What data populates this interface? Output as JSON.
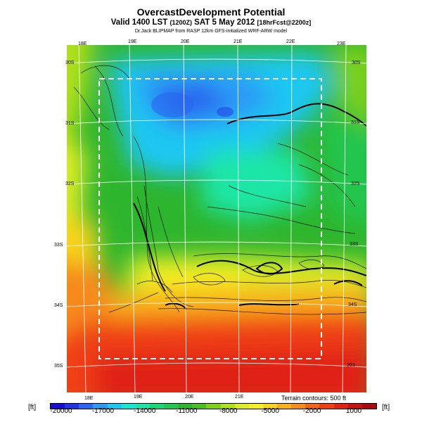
{
  "header": {
    "title": "OvercastDevelopment Potential",
    "valid_main": "Valid 1400 LST",
    "valid_z": "(1200Z)",
    "valid_date": "SAT 5 May 2012",
    "valid_fcst": "[18hrFcst@2200z]",
    "credit": "Dr.Jack BLIPMAP from RASP 12km GFS-initialized WRF-ARW model"
  },
  "map": {
    "lon_top": [
      "18E",
      "19E",
      "20E",
      "21E",
      "22E",
      "23E"
    ],
    "lon_bottom": [
      "18E",
      "19E",
      "20E",
      "21E"
    ],
    "lat_left": [
      "30S",
      "31S",
      "32S",
      "33S",
      "34S",
      "35S"
    ],
    "lat_right": [
      "30S",
      "31S",
      "32S",
      "33S",
      "34S",
      "35S"
    ],
    "terrain_note": "Terrain contours: 500 ft"
  },
  "colorbar": {
    "unit_left": "[ft]",
    "unit_right": "[ft]",
    "ticks": [
      "-20000",
      "-17000",
      "-14000",
      "-11000",
      "-8000",
      "-5000",
      "-2000",
      "1000"
    ],
    "colors": [
      "#1a0bd8",
      "#2433e4",
      "#2a66f0",
      "#2a9af5",
      "#1dc7f2",
      "#1ae4d2",
      "#1ae6a6",
      "#1cd877",
      "#22c650",
      "#2eb52e",
      "#4dbe1f",
      "#7ed11a",
      "#b0e01e",
      "#dcec25",
      "#f5ee24",
      "#f8d31f",
      "#f8b01c",
      "#f68a1a",
      "#f46418",
      "#ef3f16",
      "#e02414",
      "#c7130f",
      "#a80b0b"
    ]
  }
}
